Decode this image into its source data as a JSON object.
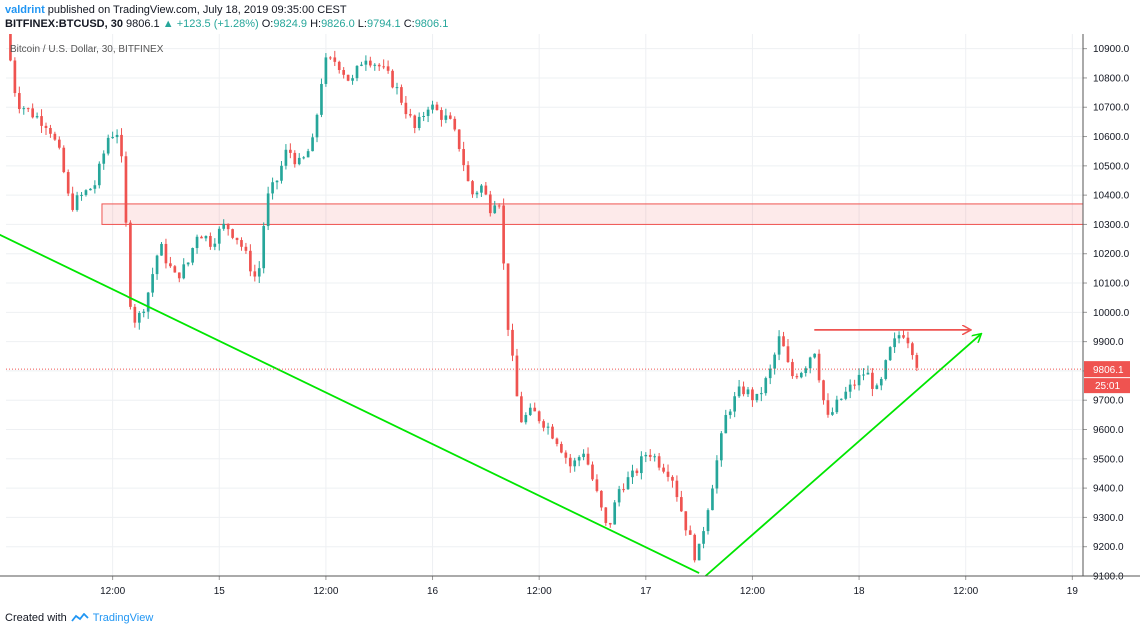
{
  "header": {
    "author": "valdrint",
    "published_text": "published on TradingView.com, July 18, 2019 09:35:00 CEST",
    "symbol": "BITFINEX:BTCUSD, 30",
    "last": "9806.1",
    "arrow": "▲",
    "change": "+123.5 (+1.28%)",
    "o_label": "O:",
    "o_value": "9824.9",
    "h_label": "H:",
    "h_value": "9826.0",
    "l_label": "L:",
    "l_value": "9794.1",
    "c_label": "C:",
    "c_value": "9806.1"
  },
  "footer": {
    "created_with": "Created with",
    "brand": "TradingView"
  },
  "chart_data": {
    "type": "candlestick",
    "legend": "Bitcoin / U.S. Dollar, 30, BITFINEX",
    "colors": {
      "up": "#26a69a",
      "down": "#ef5350",
      "trendline": "#00e600",
      "resistance": "#ef5350"
    },
    "y_range": [
      9100,
      10950
    ],
    "y_ticks": [
      "9100.0",
      "9200.0",
      "9300.0",
      "9400.0",
      "9500.0",
      "9600.0",
      "9700.0",
      "9800.0",
      "9900.0",
      "10000.0",
      "10100.0",
      "10200.0",
      "10300.0",
      "10400.0",
      "10500.0",
      "10600.0",
      "10700.0",
      "10800.0",
      "10900.0"
    ],
    "x_ticks": [
      "12:00",
      "15",
      "12:00",
      "16",
      "12:00",
      "17",
      "12:00",
      "18",
      "12:00",
      "19"
    ],
    "x_range_days": [
      14.0,
      19.05
    ],
    "current_price": "9806.1",
    "countdown": "25:01",
    "support_zone": {
      "low": 10300,
      "high": 10370
    },
    "path_points": [
      [
        14.0,
        10960
      ],
      [
        14.05,
        10720
      ],
      [
        14.12,
        10680
      ],
      [
        14.2,
        10640
      ],
      [
        14.26,
        10520
      ],
      [
        14.3,
        10360
      ],
      [
        14.36,
        10400
      ],
      [
        14.42,
        10440
      ],
      [
        14.48,
        10600
      ],
      [
        14.52,
        10620
      ],
      [
        14.55,
        10470
      ],
      [
        14.58,
        10050
      ],
      [
        14.61,
        9960
      ],
      [
        14.66,
        10050
      ],
      [
        14.72,
        10230
      ],
      [
        14.79,
        10120
      ],
      [
        14.85,
        10160
      ],
      [
        14.9,
        10280
      ],
      [
        14.96,
        10240
      ],
      [
        15.03,
        10300
      ],
      [
        15.09,
        10250
      ],
      [
        15.15,
        10150
      ],
      [
        15.18,
        10100
      ],
      [
        15.22,
        10380
      ],
      [
        15.27,
        10450
      ],
      [
        15.32,
        10560
      ],
      [
        15.38,
        10500
      ],
      [
        15.44,
        10580
      ],
      [
        15.49,
        10850
      ],
      [
        15.55,
        10860
      ],
      [
        15.62,
        10780
      ],
      [
        15.68,
        10880
      ],
      [
        15.75,
        10840
      ],
      [
        15.82,
        10780
      ],
      [
        15.87,
        10700
      ],
      [
        15.92,
        10620
      ],
      [
        15.98,
        10710
      ],
      [
        16.03,
        10680
      ],
      [
        16.08,
        10650
      ],
      [
        16.13,
        10560
      ],
      [
        16.18,
        10400
      ],
      [
        16.23,
        10430
      ],
      [
        16.27,
        10360
      ],
      [
        16.31,
        10410
      ],
      [
        16.35,
        9980
      ],
      [
        16.38,
        9800
      ],
      [
        16.41,
        9630
      ],
      [
        16.47,
        9660
      ],
      [
        16.53,
        9620
      ],
      [
        16.59,
        9560
      ],
      [
        16.65,
        9470
      ],
      [
        16.71,
        9530
      ],
      [
        16.77,
        9380
      ],
      [
        16.82,
        9250
      ],
      [
        16.88,
        9410
      ],
      [
        16.94,
        9440
      ],
      [
        17.01,
        9530
      ],
      [
        17.06,
        9490
      ],
      [
        17.12,
        9450
      ],
      [
        17.18,
        9290
      ],
      [
        17.24,
        9150
      ],
      [
        17.28,
        9300
      ],
      [
        17.33,
        9480
      ],
      [
        17.38,
        9660
      ],
      [
        17.45,
        9740
      ],
      [
        17.52,
        9700
      ],
      [
        17.58,
        9790
      ],
      [
        17.63,
        9920
      ],
      [
        17.68,
        9780
      ],
      [
        17.74,
        9810
      ],
      [
        17.79,
        9880
      ],
      [
        17.85,
        9630
      ],
      [
        17.91,
        9700
      ],
      [
        17.97,
        9750
      ],
      [
        18.03,
        9800
      ],
      [
        18.09,
        9720
      ],
      [
        18.14,
        9860
      ],
      [
        18.2,
        9940
      ],
      [
        18.24,
        9900
      ],
      [
        18.28,
        9806.1
      ]
    ],
    "annotations": [
      {
        "type": "trendline",
        "from": {
          "day": 13.97,
          "price": 10265
        },
        "to": {
          "day": 17.25,
          "price": 9110
        }
      },
      {
        "type": "trendline-arrow",
        "from": {
          "day": 17.28,
          "price": 9100
        },
        "to": {
          "day": 18.57,
          "price": 9925
        }
      },
      {
        "type": "resistance-arrow",
        "from": {
          "day": 17.79,
          "price": 9940
        },
        "to": {
          "day": 18.52,
          "price": 9940
        }
      }
    ]
  }
}
